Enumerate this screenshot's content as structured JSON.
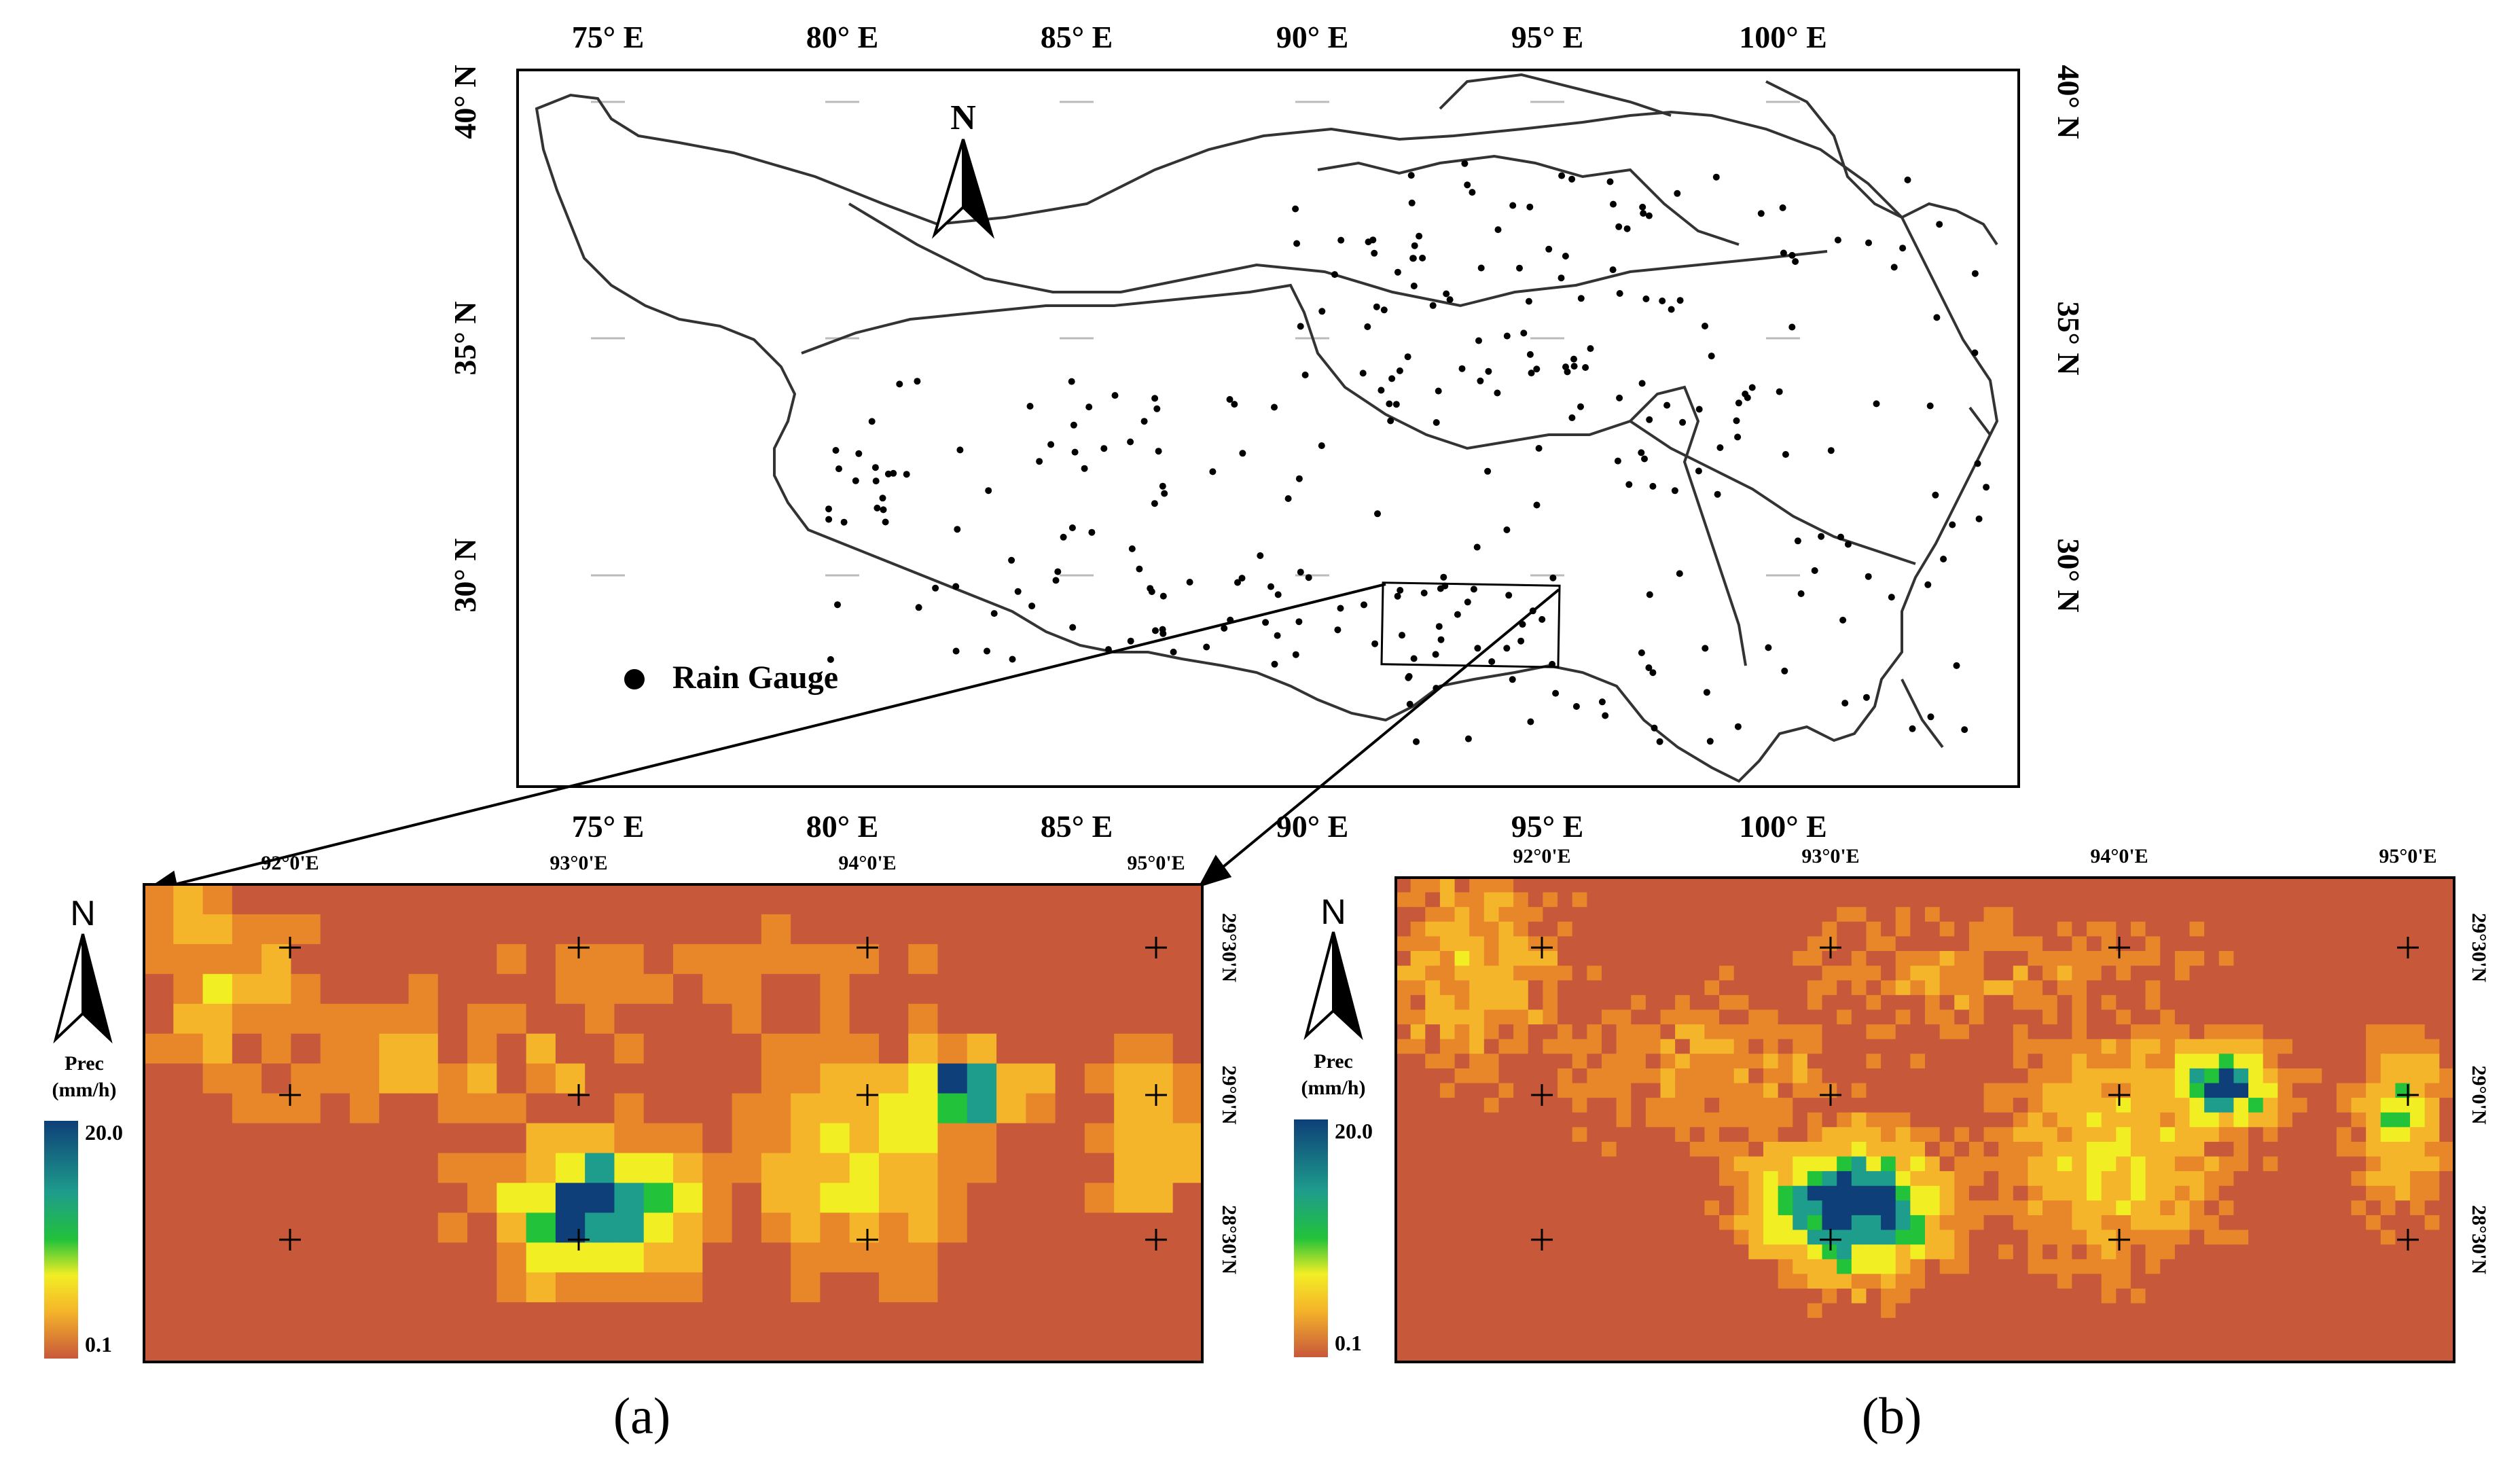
{
  "main_map": {
    "lon_ticks": [
      "75° E",
      "80° E",
      "85° E",
      "90° E",
      "95° E",
      "100° E"
    ],
    "lat_ticks": [
      "40° N",
      "35° N",
      "30° N"
    ],
    "north_label": "N",
    "legend_label": "Rain Gauge"
  },
  "panel_a": {
    "lon_ticks": [
      "92°0'E",
      "93°0'E",
      "94°0'E",
      "95°0'E"
    ],
    "lat_ticks": [
      "29°30'N",
      "29°0'N",
      "28°30'N"
    ],
    "north_label": "N",
    "colorbar_title_1": "Prec",
    "colorbar_title_2": "(mm/h)",
    "colorbar_max": "20.0",
    "colorbar_min": "0.1",
    "caption": "(a)"
  },
  "panel_b": {
    "lon_ticks": [
      "92°0'E",
      "93°0'E",
      "94°0'E",
      "95°0'E"
    ],
    "lat_ticks": [
      "29°30'N",
      "29°0'N",
      "28°30'N"
    ],
    "north_label": "N",
    "colorbar_title_1": "Prec",
    "colorbar_title_2": "(mm/h)",
    "colorbar_max": "20.0",
    "colorbar_min": "0.1",
    "caption": "(b)"
  },
  "colors": {
    "dry": "#c8583a",
    "low": "#e8862a",
    "mid": "#f5b52a",
    "yellow": "#f2ee24",
    "green": "#22c23a",
    "teal": "#1e9c8c",
    "navy": "#0e3f78"
  }
}
